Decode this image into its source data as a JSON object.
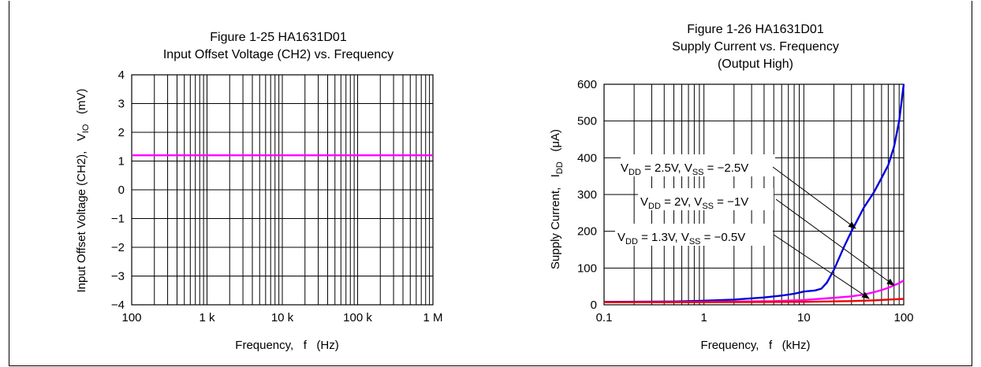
{
  "chart_data": [
    {
      "type": "line",
      "title_line1": "Figure 1-25 HA1631D01",
      "title_line2": "Input Offset Voltage (CH2) vs. Frequency",
      "xlabel": "Frequency,   f   (Hz)",
      "ylabel_main": "Input Offset Voltage (CH2),   V",
      "ylabel_sub": "IO",
      "ylabel_unit": "(mV)",
      "x_scale": "log",
      "xlim": [
        100,
        1000000
      ],
      "ylim": [
        -4,
        4
      ],
      "x_ticks": [
        {
          "value": 100,
          "label": "100"
        },
        {
          "value": 1000,
          "label": "1 k"
        },
        {
          "value": 10000,
          "label": "10 k"
        },
        {
          "value": 100000,
          "label": "100 k"
        },
        {
          "value": 1000000,
          "label": "1 M"
        }
      ],
      "y_ticks": [
        {
          "value": 4,
          "label": "4"
        },
        {
          "value": 3,
          "label": "3"
        },
        {
          "value": 2,
          "label": "2"
        },
        {
          "value": 1,
          "label": "1"
        },
        {
          "value": 0,
          "label": "0"
        },
        {
          "value": -1,
          "label": "−1"
        },
        {
          "value": -2,
          "label": "−2"
        },
        {
          "value": -3,
          "label": "−3"
        },
        {
          "value": -4,
          "label": "−4"
        }
      ],
      "grid": true,
      "series": [
        {
          "color": "#ff00ff",
          "x": [
            100,
            1000,
            10000,
            100000,
            1000000
          ],
          "y": [
            1.2,
            1.2,
            1.2,
            1.2,
            1.2
          ]
        }
      ]
    },
    {
      "type": "line",
      "title_line1": "Figure 1-26 HA1631D01",
      "title_line2": "Supply Current vs. Frequency",
      "title_line3": "(Output High)",
      "xlabel": "Frequency,   f   (kHz)",
      "ylabel_main": "Supply Current,   I",
      "ylabel_sub": "DD",
      "ylabel_unit": "(μA)",
      "x_scale": "log",
      "xlim": [
        0.1,
        100
      ],
      "ylim": [
        0,
        600
      ],
      "x_ticks": [
        {
          "value": 0.1,
          "label": "0.1"
        },
        {
          "value": 1,
          "label": "1"
        },
        {
          "value": 10,
          "label": "10"
        },
        {
          "value": 100,
          "label": "100"
        }
      ],
      "y_ticks": [
        {
          "value": 600,
          "label": "600"
        },
        {
          "value": 500,
          "label": "500"
        },
        {
          "value": 400,
          "label": "400"
        },
        {
          "value": 300,
          "label": "300"
        },
        {
          "value": 200,
          "label": "200"
        },
        {
          "value": 100,
          "label": "100"
        },
        {
          "value": 0,
          "label": "0"
        }
      ],
      "grid": true,
      "series": [
        {
          "color": "#0000dd",
          "x": [
            0.1,
            0.5,
            1,
            2,
            4,
            6,
            8,
            10,
            13,
            15,
            17,
            20,
            25,
            30,
            40,
            50,
            60,
            70,
            80,
            90,
            100
          ],
          "y": [
            8,
            9,
            11,
            14,
            20,
            25,
            30,
            36,
            39,
            44,
            60,
            95,
            155,
            200,
            265,
            305,
            345,
            380,
            430,
            500,
            600
          ]
        },
        {
          "color": "#ff00ff",
          "x": [
            0.1,
            1,
            5,
            10,
            20,
            30,
            40,
            50,
            60,
            70,
            80,
            90,
            100
          ],
          "y": [
            7,
            8,
            10,
            13,
            19,
            23,
            28,
            34,
            40,
            46,
            53,
            59,
            66
          ]
        },
        {
          "color": "#ee0000",
          "x": [
            0.1,
            1,
            10,
            30,
            50,
            70,
            100
          ],
          "y": [
            7,
            7,
            8,
            10,
            12,
            14,
            16
          ]
        }
      ],
      "annotations": [
        {
          "dd": "= 2.5V,",
          "ss": "= −2.5V",
          "target_x": 33,
          "target_y": 208
        },
        {
          "dd": "= 2V,",
          "ss": "= −1V",
          "target_x": 80,
          "target_y": 53
        },
        {
          "dd": "= 1.3V,",
          "ss": "= −0.5V",
          "target_x": 45,
          "target_y": 17
        }
      ],
      "annotation_prefix_dd": "V",
      "annotation_sub_dd": "DD",
      "annotation_prefix_ss": "V",
      "annotation_sub_ss": "SS"
    }
  ]
}
